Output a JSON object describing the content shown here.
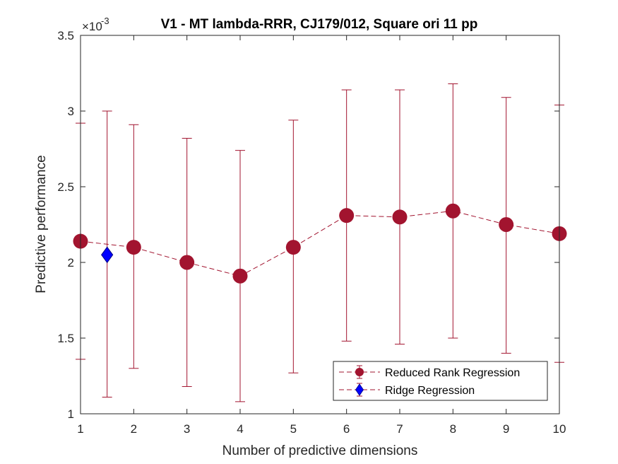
{
  "chart_data": {
    "type": "line",
    "title": "V1 - MT lambda-RRR, CJ179/012, Square ori 11 pp",
    "xlabel": "Number of predictive dimensions",
    "ylabel": "Predictive performance",
    "y_exponent_prefix": "×10",
    "y_exponent_power": "-3",
    "xlim": [
      1,
      10
    ],
    "ylim": [
      1,
      3.5
    ],
    "xticks": [
      "1",
      "2",
      "3",
      "4",
      "5",
      "6",
      "7",
      "8",
      "9",
      "10"
    ],
    "yticks": [
      "1",
      "1.5",
      "2",
      "2.5",
      "3",
      "3.5"
    ],
    "grid": false,
    "legend_placement": "bottom-right",
    "series": [
      {
        "name": "Reduced Rank Regression",
        "color": "#a2142f",
        "marker": "circle",
        "x": [
          1,
          2,
          3,
          4,
          5,
          6,
          7,
          8,
          9,
          10
        ],
        "y": [
          2.14,
          2.1,
          2.0,
          1.91,
          2.1,
          2.31,
          2.3,
          2.34,
          2.25,
          2.19
        ],
        "err_low": [
          1.36,
          1.3,
          1.18,
          1.08,
          1.27,
          1.48,
          1.46,
          1.5,
          1.4,
          1.34
        ],
        "err_high": [
          2.92,
          2.91,
          2.82,
          2.74,
          2.94,
          3.14,
          3.14,
          3.18,
          3.09,
          3.04
        ]
      },
      {
        "name": "Ridge Regression",
        "color": "#0000ff",
        "errcolor": "#a2142f",
        "marker": "diamond",
        "x": [
          1.5
        ],
        "y": [
          2.05
        ],
        "err_low": [
          1.11
        ],
        "err_high": [
          3.0
        ]
      }
    ]
  }
}
